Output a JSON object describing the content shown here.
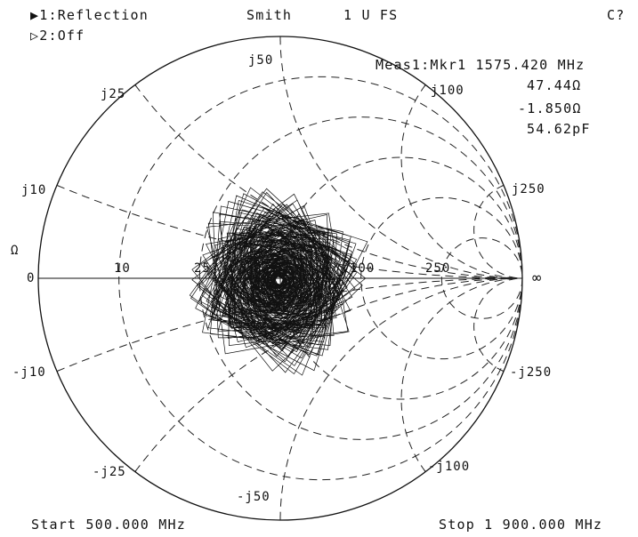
{
  "header": {
    "trace1": "▶1:Reflection",
    "trace2": "▷2:Off",
    "format": "Smith",
    "scale": "1 U FS",
    "corner": "C?"
  },
  "marker": {
    "title": "Meas1:Mkr1 1575.420 MHz",
    "resistance": "47.44Ω",
    "reactance": "-1.850Ω",
    "capacitance": "54.62pF"
  },
  "footer": {
    "start": "Start 500.000 MHz",
    "stop": "Stop 1 900.000 MHz"
  },
  "chart_data": {
    "type": "smith",
    "impedance_unit_label": "Ω",
    "z0": 50,
    "resistance_circles": [
      0,
      10,
      25,
      50,
      100,
      250
    ],
    "reactance_arcs": [
      10,
      25,
      50,
      100,
      250
    ],
    "labels": {
      "real_axis": [
        "0",
        "10",
        "25",
        "100",
        "250",
        "∞"
      ],
      "reactance_pos": [
        "j10",
        "j25",
        "j50",
        "j100",
        "j250"
      ],
      "reactance_neg": [
        "-j10",
        "-j25",
        "-j50",
        "-j100",
        "-j250"
      ]
    },
    "marker_1": {
      "frequency_mhz": 1575.42,
      "r_ohm": 47.44,
      "x_ohm": -1.85,
      "c_pf": 54.62
    },
    "sweep_mhz": [
      500,
      1900
    ]
  }
}
